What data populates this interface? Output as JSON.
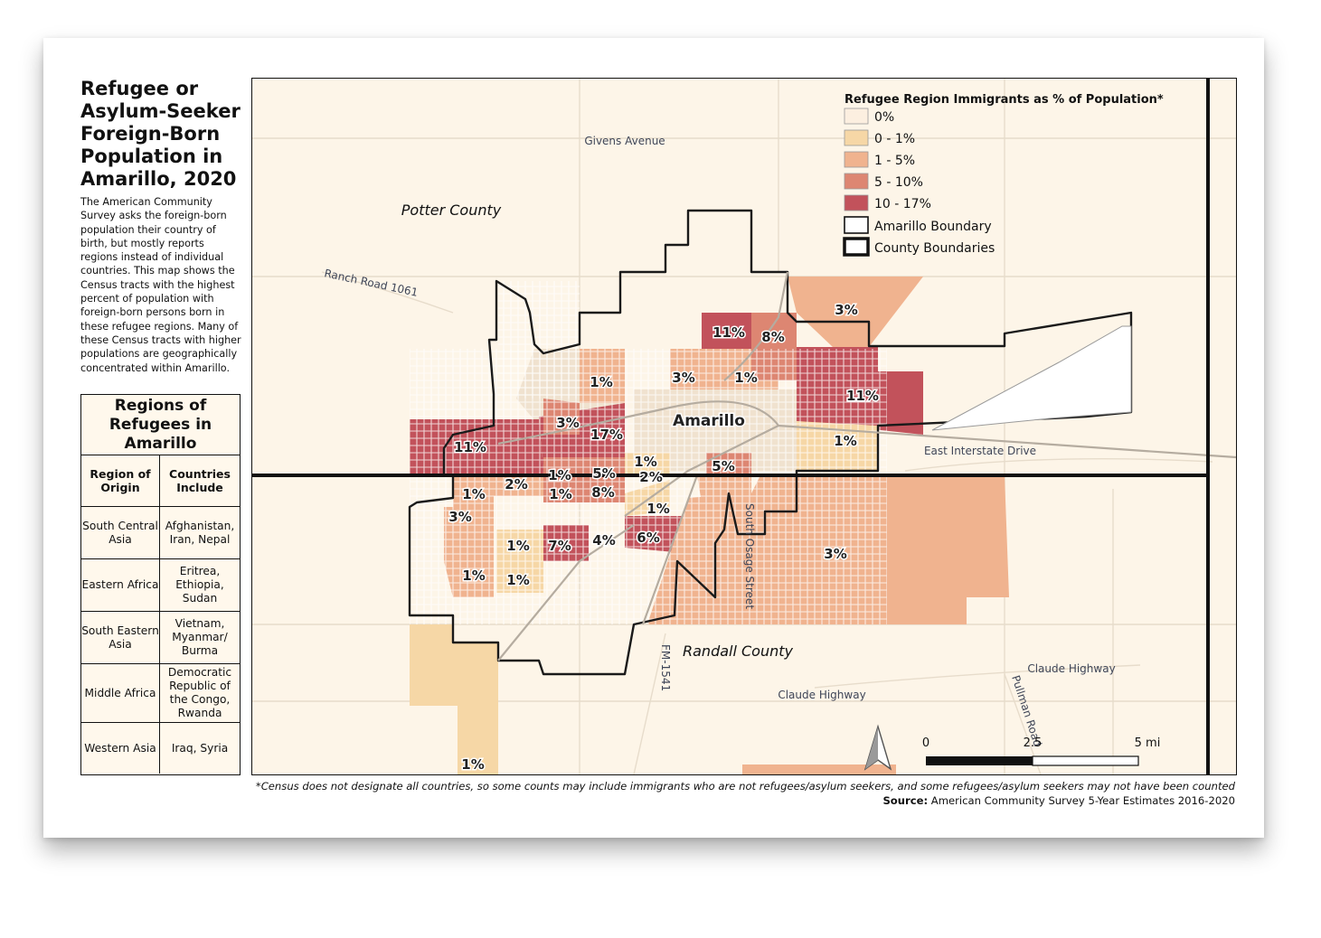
{
  "title": "Refugee or Asylum-Seeker Foreign-Born Population in Amarillo, 2020",
  "description": "The American Community Survey asks the foreign-born population their country of birth, but mostly reports regions instead of individual countries. This map shows the Census tracts with the highest percent of population with foreign-born persons born in these refugee regions. Many of these Census tracts with higher populations are geographically concentrated within Amarillo.",
  "regions_table": {
    "heading": "Regions of Refugees in Amarillo",
    "col_region": "Region of Origin",
    "col_countries": "Countries Include",
    "rows": [
      {
        "region": "South Central Asia",
        "countries": "Afghanistan, Iran, Nepal"
      },
      {
        "region": "Eastern Africa",
        "countries": "Eritrea, Ethiopia, Sudan"
      },
      {
        "region": "South Eastern Asia",
        "countries": "Vietnam, Myanmar/ Burma"
      },
      {
        "region": "Middle Africa",
        "countries": "Democratic Republic of the Congo, Rwanda"
      },
      {
        "region": "Western Asia",
        "countries": "Iraq, Syria"
      }
    ]
  },
  "legend": {
    "title": "Refugee Region Immigrants as % of Population*",
    "classes": [
      {
        "label": "0%",
        "color": "#fcefe0"
      },
      {
        "label": "0 - 1%",
        "color": "#f6d7a6"
      },
      {
        "label": "1 - 5%",
        "color": "#f0b38f"
      },
      {
        "label": "5 - 10%",
        "color": "#dd8672"
      },
      {
        "label": "10 - 17%",
        "color": "#c2525b"
      }
    ],
    "amarillo_boundary": "Amarillo Boundary",
    "county_boundaries": "County Boundaries"
  },
  "place_labels": {
    "potter": "Potter County",
    "randall": "Randall County",
    "city": "Amarillo"
  },
  "road_labels": {
    "givens": "Givens Avenue",
    "ranch": "Ranch Road 1061",
    "interstate": "East Interstate Drive",
    "osage": "South Osage Street",
    "fm": "FM-1541",
    "claude1": "Claude Highway",
    "claude2": "Claude Highway",
    "pullman": "Pullman Road"
  },
  "tract_labels": [
    "3%",
    "11%",
    "8%",
    "1%",
    "3%",
    "1%",
    "11%",
    "3%",
    "17%",
    "11%",
    "1%",
    "1%",
    "2%",
    "1%",
    "5%",
    "2%",
    "5%",
    "1%",
    "1%",
    "8%",
    "1%",
    "3%",
    "1%",
    "7%",
    "4%",
    "6%",
    "1%",
    "1%",
    "3%",
    "1%"
  ],
  "scale_bar": {
    "ticks": [
      "0",
      "2.5",
      "5 mi"
    ]
  },
  "footnote": "*Census does not designate all countries, so some counts may include immigrants who are not refugees/asylum seekers, and some refugees/asylum seekers may not have been counted",
  "source_label": "Source:",
  "source_text": "American Community Survey 5-Year Estimates 2016-2020"
}
